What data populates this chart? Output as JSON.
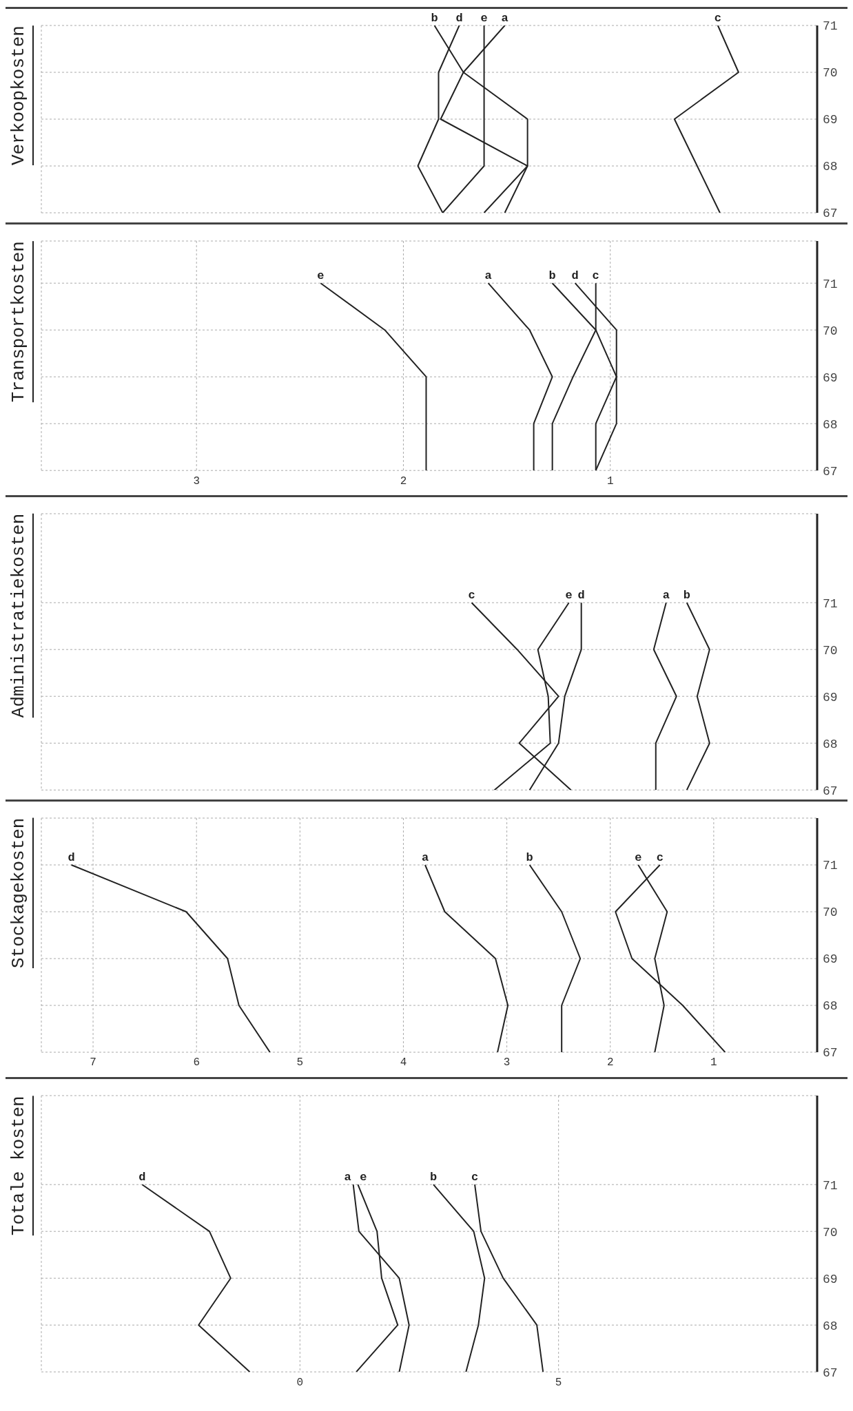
{
  "chart_data": [
    {
      "type": "line",
      "title": "Verkoopkosten",
      "xlim": [
        3.75,
        0
      ],
      "xticks": [
        3,
        2,
        1
      ],
      "tick_labels": "y",
      "ylim": [
        67,
        71
      ],
      "yticks": [
        67,
        68,
        69,
        70,
        71
      ],
      "grid": true,
      "series": [
        {
          "name": "b",
          "color": "#222222",
          "x": [
            1.51,
            1.4,
            1.4,
            1.71,
            1.85
          ],
          "values": [
            67,
            68,
            69,
            70,
            71
          ]
        },
        {
          "name": "d",
          "color": "#222222",
          "x": [
            1.81,
            1.93,
            1.83,
            1.83,
            1.73
          ],
          "values": [
            67,
            68,
            69,
            70,
            71
          ]
        },
        {
          "name": "e",
          "color": "#222222",
          "x": [
            1.81,
            1.61,
            1.61,
            1.61,
            1.61
          ],
          "values": [
            67,
            68,
            69,
            70,
            71
          ]
        },
        {
          "name": "a",
          "color": "#222222",
          "x": [
            1.61,
            1.4,
            1.82,
            1.71,
            1.51
          ],
          "values": [
            67,
            68,
            69,
            70,
            71
          ]
        },
        {
          "name": "c",
          "color": "#222222",
          "x": [
            0.47,
            0.58,
            0.69,
            0.38,
            0.48
          ],
          "values": [
            67,
            68,
            69,
            70,
            71
          ]
        }
      ]
    },
    {
      "type": "line",
      "title": "Transportkosten",
      "xlim": [
        3.75,
        0
      ],
      "xticks": [
        3,
        2,
        1
      ],
      "ylim": [
        67,
        71.9
      ],
      "yticks": [
        67,
        68,
        69,
        70,
        71
      ],
      "grid": true,
      "series": [
        {
          "name": "e",
          "color": "#222222",
          "x": [
            1.89,
            1.89,
            1.89,
            2.09,
            2.4
          ],
          "values": [
            67,
            68,
            69,
            70,
            71
          ]
        },
        {
          "name": "a",
          "color": "#222222",
          "x": [
            1.37,
            1.37,
            1.28,
            1.39,
            1.59
          ],
          "values": [
            67,
            68,
            69,
            70,
            71
          ]
        },
        {
          "name": "b",
          "color": "#222222",
          "x": [
            1.28,
            1.28,
            1.18,
            1.07,
            1.28
          ],
          "values": [
            67,
            68,
            69,
            70,
            71
          ]
        },
        {
          "name": "d",
          "color": "#222222",
          "x": [
            1.07,
            0.97,
            0.97,
            0.97,
            1.17
          ],
          "values": [
            67,
            68,
            69,
            70,
            71
          ]
        },
        {
          "name": "c",
          "color": "#222222",
          "x": [
            1.07,
            1.07,
            0.97,
            1.07,
            1.07
          ],
          "values": [
            67,
            68,
            69,
            70,
            71
          ]
        }
      ]
    },
    {
      "type": "line",
      "title": "Administratiekosten",
      "xlim": [
        3.75,
        0
      ],
      "xticks": [
        3,
        2,
        1
      ],
      "tick_labels": "y",
      "ylim": [
        67,
        72.9
      ],
      "yticks": [
        67,
        68,
        69,
        70,
        71
      ],
      "grid": true,
      "series": [
        {
          "name": "c",
          "color": "#222222",
          "x": [
            1.19,
            1.44,
            1.25,
            1.45,
            1.67
          ],
          "values": [
            67,
            68,
            69,
            70,
            71
          ]
        },
        {
          "name": "e",
          "color": "#222222",
          "x": [
            1.56,
            1.29,
            1.3,
            1.35,
            1.2
          ],
          "values": [
            67,
            68,
            69,
            70,
            71
          ]
        },
        {
          "name": "d",
          "color": "#222222",
          "x": [
            1.39,
            1.25,
            1.22,
            1.14,
            1.14
          ],
          "values": [
            67,
            68,
            69,
            70,
            71
          ]
        },
        {
          "name": "a",
          "color": "#222222",
          "x": [
            0.78,
            0.78,
            0.68,
            0.79,
            0.73
          ],
          "values": [
            67,
            68,
            69,
            70,
            71
          ]
        },
        {
          "name": "b",
          "color": "#222222",
          "x": [
            0.63,
            0.52,
            0.58,
            0.52,
            0.63
          ],
          "values": [
            67,
            68,
            69,
            70,
            71
          ]
        }
      ]
    },
    {
      "type": "line",
      "title": "Stockagekosten",
      "xlim": [
        7.5,
        0
      ],
      "xticks": [
        7,
        6,
        5,
        4,
        3,
        2,
        1
      ],
      "ylim": [
        67,
        72
      ],
      "yticks": [
        67,
        68,
        69,
        70,
        71
      ],
      "grid": true,
      "series": [
        {
          "name": "d",
          "color": "#222222",
          "x": [
            5.29,
            5.59,
            5.7,
            6.1,
            7.21
          ],
          "values": [
            67,
            68,
            69,
            70,
            71
          ]
        },
        {
          "name": "a",
          "color": "#222222",
          "x": [
            3.09,
            2.99,
            3.11,
            3.6,
            3.79
          ],
          "values": [
            67,
            68,
            69,
            70,
            71
          ]
        },
        {
          "name": "b",
          "color": "#222222",
          "x": [
            2.47,
            2.47,
            2.29,
            2.47,
            2.78
          ],
          "values": [
            67,
            68,
            69,
            70,
            71
          ]
        },
        {
          "name": "e",
          "color": "#222222",
          "x": [
            1.57,
            1.48,
            1.57,
            1.45,
            1.73
          ],
          "values": [
            67,
            68,
            69,
            70,
            71
          ]
        },
        {
          "name": "c",
          "color": "#222222",
          "x": [
            0.89,
            1.3,
            1.79,
            1.95,
            1.52
          ],
          "values": [
            67,
            68,
            69,
            70,
            71
          ]
        }
      ]
    },
    {
      "type": "line",
      "title": "Totale kosten",
      "xlim": [
        -5,
        10
      ],
      "xticks": [
        0,
        5
      ],
      "ylim": [
        67,
        72.9
      ],
      "yticks": [
        67,
        68,
        69,
        70,
        71
      ],
      "grid": true,
      "series": [
        {
          "name": "d",
          "color": "#222222",
          "x": [
            -0.97,
            -1.96,
            -1.34,
            -1.75,
            -3.05
          ],
          "values": [
            67,
            68,
            69,
            70,
            71
          ]
        },
        {
          "name": "a",
          "color": "#222222",
          "x": [
            1.92,
            2.11,
            1.92,
            1.14,
            1.03
          ],
          "values": [
            67,
            68,
            69,
            70,
            71
          ]
        },
        {
          "name": "e",
          "color": "#222222",
          "x": [
            1.09,
            1.89,
            1.58,
            1.49,
            1.12
          ],
          "values": [
            67,
            68,
            69,
            70,
            71
          ]
        },
        {
          "name": "b",
          "color": "#222222",
          "x": [
            3.21,
            3.45,
            3.57,
            3.36,
            2.58
          ],
          "values": [
            67,
            68,
            69,
            70,
            71
          ]
        },
        {
          "name": "c",
          "color": "#222222",
          "x": [
            4.7,
            4.58,
            3.93,
            3.5,
            3.38
          ],
          "values": [
            67,
            68,
            69,
            70,
            71
          ]
        }
      ]
    }
  ]
}
